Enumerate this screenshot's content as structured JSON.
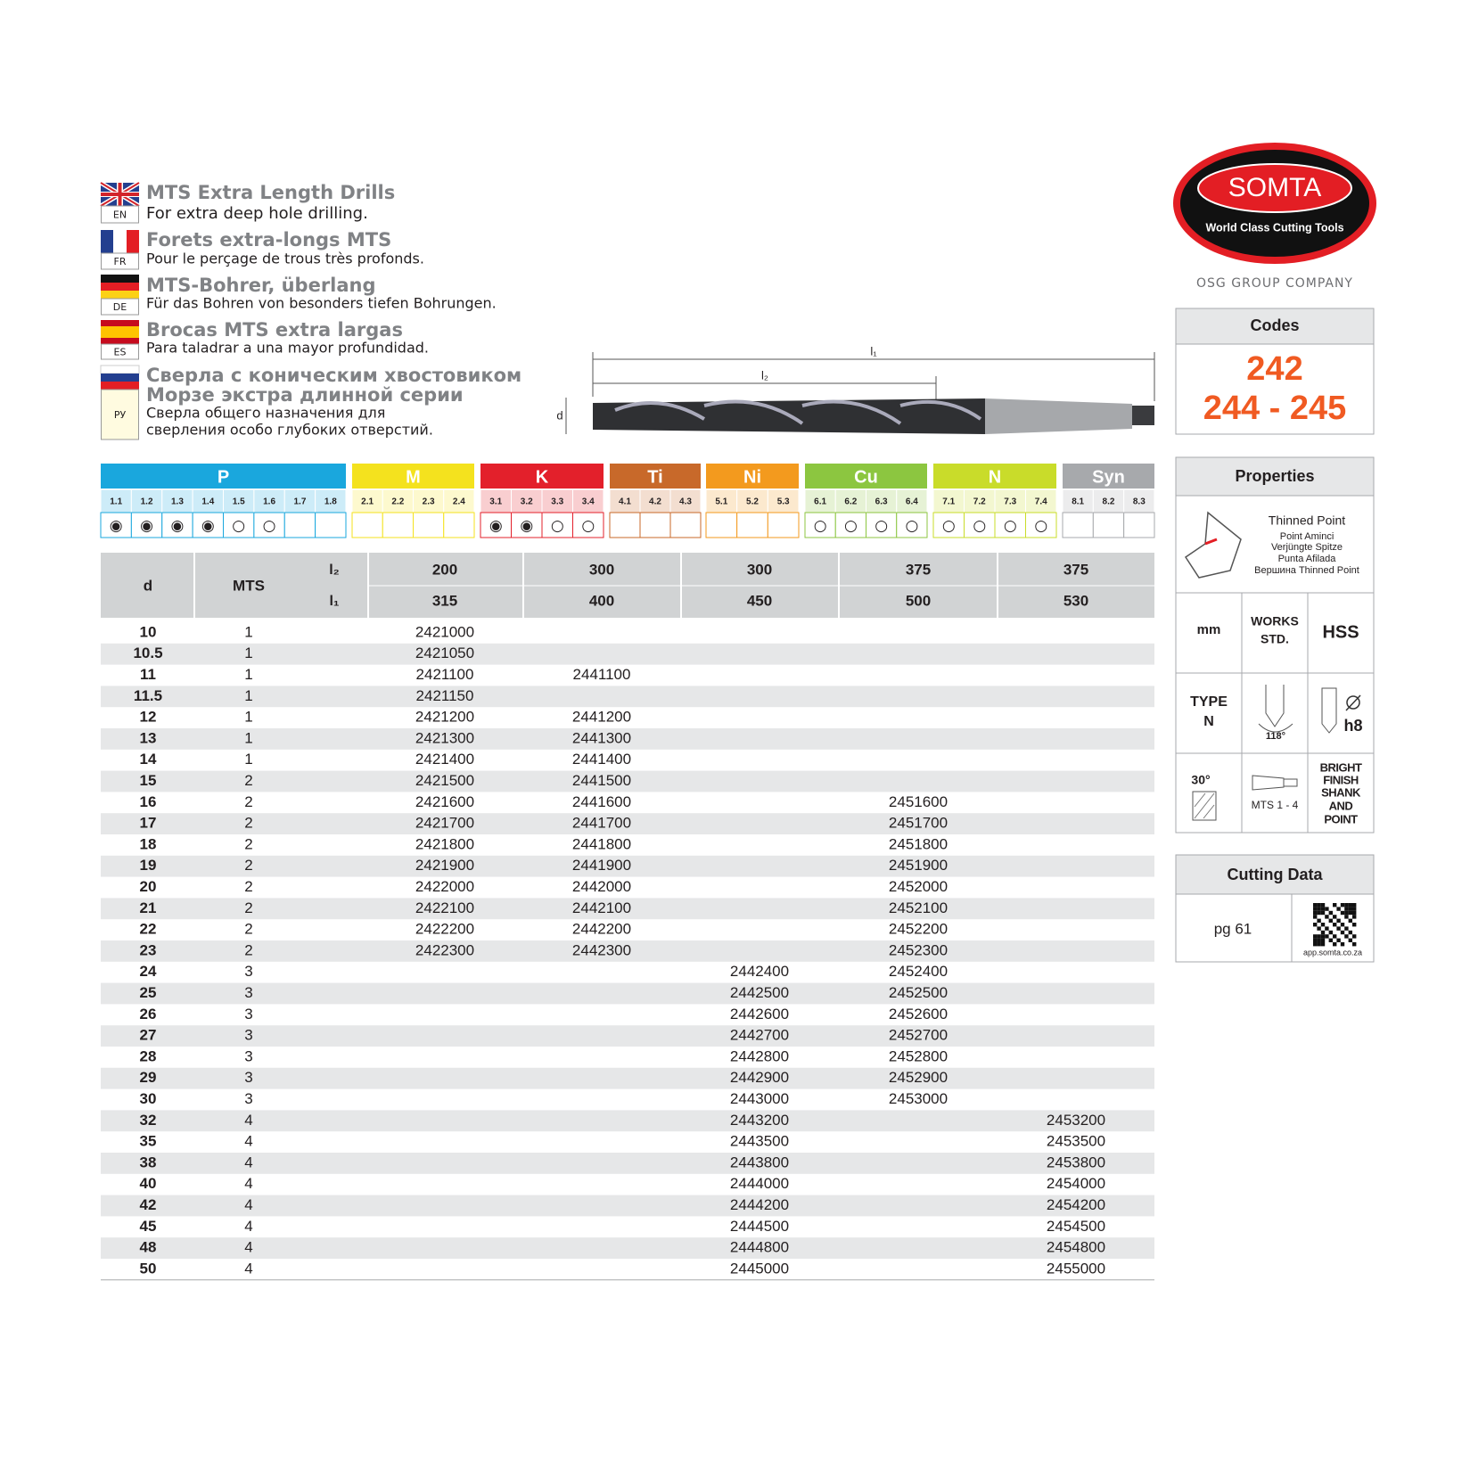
{
  "languages": [
    {
      "code": "EN",
      "title": [
        "MTS Extra Length Drills"
      ],
      "subtitle": [
        "For extra deep hole drilling."
      ]
    },
    {
      "code": "FR",
      "title": [
        "Forets extra-longs MTS"
      ],
      "subtitle": [
        "Pour le perçage de trous très profonds."
      ]
    },
    {
      "code": "DE",
      "title": [
        "MTS-Bohrer, überlang"
      ],
      "subtitle": [
        "Für das Bohren von besonders tiefen Bohrungen."
      ]
    },
    {
      "code": "ES",
      "title": [
        "Brocas MTS extra largas"
      ],
      "subtitle": [
        "Para taladrar a una mayor profundidad."
      ]
    },
    {
      "code": "РУ",
      "title": [
        "Сверла с коническим хвостовиком",
        "Морзе экстра длинной серии"
      ],
      "subtitle": [
        "Сверла общего назначения для",
        "сверления особо глубоких отверстий."
      ]
    }
  ],
  "drawing": {
    "l1": "l₁",
    "l2": "l₂",
    "d": "d"
  },
  "materials": [
    {
      "name": "P",
      "color": "#1aa7dd",
      "subs": [
        "1.1",
        "1.2",
        "1.3",
        "1.4",
        "1.5",
        "1.6",
        "1.7",
        "1.8"
      ],
      "marks": [
        "◉",
        "◉",
        "◉",
        "◉",
        "○",
        "○",
        null,
        null
      ]
    },
    {
      "name": "M",
      "color": "#f4e21e",
      "subs": [
        "2.1",
        "2.2",
        "2.3",
        "2.4"
      ],
      "marks": [
        null,
        null,
        null,
        null
      ]
    },
    {
      "name": "K",
      "color": "#e3202b",
      "subs": [
        "3.1",
        "3.2",
        "3.3",
        "3.4"
      ],
      "marks": [
        "◉",
        "◉",
        "○",
        "○"
      ]
    },
    {
      "name": "Ti",
      "color": "#c8692a",
      "subs": [
        "4.1",
        "4.2",
        "4.3"
      ],
      "marks": [
        null,
        null,
        null
      ]
    },
    {
      "name": "Ni",
      "color": "#f39a1e",
      "subs": [
        "5.1",
        "5.2",
        "5.3"
      ],
      "marks": [
        null,
        null,
        null
      ]
    },
    {
      "name": "Cu",
      "color": "#8cc640",
      "subs": [
        "6.1",
        "6.2",
        "6.3",
        "6.4"
      ],
      "marks": [
        "○",
        "○",
        "○",
        "○"
      ]
    },
    {
      "name": "N",
      "color": "#c9dc2a",
      "subs": [
        "7.1",
        "7.2",
        "7.3",
        "7.4"
      ],
      "marks": [
        "○",
        "○",
        "○",
        "○"
      ]
    },
    {
      "name": "Syn",
      "color": "#a7a9ac",
      "subs": [
        "8.1",
        "8.2",
        "8.3"
      ],
      "marks": [
        null,
        null,
        null
      ]
    }
  ],
  "table": {
    "header": {
      "d": "d",
      "mts": "MTS",
      "l2": "l₂",
      "l1": "l₁"
    },
    "columns": [
      {
        "l2": 200,
        "l1": 315
      },
      {
        "l2": 300,
        "l1": 400
      },
      {
        "l2": 300,
        "l1": 450
      },
      {
        "l2": 375,
        "l1": 500
      },
      {
        "l2": 375,
        "l1": 530
      }
    ],
    "rows": [
      [
        10,
        1,
        2421000,
        null,
        null,
        null,
        null
      ],
      [
        10.5,
        1,
        2421050,
        null,
        null,
        null,
        null
      ],
      [
        11,
        1,
        2421100,
        2441100,
        null,
        null,
        null
      ],
      [
        11.5,
        1,
        2421150,
        null,
        null,
        null,
        null
      ],
      [
        12,
        1,
        2421200,
        2441200,
        null,
        null,
        null
      ],
      [
        13,
        1,
        2421300,
        2441300,
        null,
        null,
        null
      ],
      [
        14,
        1,
        2421400,
        2441400,
        null,
        null,
        null
      ],
      [
        15,
        2,
        2421500,
        2441500,
        null,
        null,
        null
      ],
      [
        16,
        2,
        2421600,
        2441600,
        null,
        2451600,
        null
      ],
      [
        17,
        2,
        2421700,
        2441700,
        null,
        2451700,
        null
      ],
      [
        18,
        2,
        2421800,
        2441800,
        null,
        2451800,
        null
      ],
      [
        19,
        2,
        2421900,
        2441900,
        null,
        2451900,
        null
      ],
      [
        20,
        2,
        2422000,
        2442000,
        null,
        2452000,
        null
      ],
      [
        21,
        2,
        2422100,
        2442100,
        null,
        2452100,
        null
      ],
      [
        22,
        2,
        2422200,
        2442200,
        null,
        2452200,
        null
      ],
      [
        23,
        2,
        2422300,
        2442300,
        null,
        2452300,
        null
      ],
      [
        24,
        3,
        null,
        null,
        2442400,
        2452400,
        null
      ],
      [
        25,
        3,
        null,
        null,
        2442500,
        2452500,
        null
      ],
      [
        26,
        3,
        null,
        null,
        2442600,
        2452600,
        null
      ],
      [
        27,
        3,
        null,
        null,
        2442700,
        2452700,
        null
      ],
      [
        28,
        3,
        null,
        null,
        2442800,
        2452800,
        null
      ],
      [
        29,
        3,
        null,
        null,
        2442900,
        2452900,
        null
      ],
      [
        30,
        3,
        null,
        null,
        2443000,
        2453000,
        null
      ],
      [
        32,
        4,
        null,
        null,
        2443200,
        null,
        2453200
      ],
      [
        35,
        4,
        null,
        null,
        2443500,
        null,
        2453500
      ],
      [
        38,
        4,
        null,
        null,
        2443800,
        null,
        2453800
      ],
      [
        40,
        4,
        null,
        null,
        2444000,
        null,
        2454000
      ],
      [
        42,
        4,
        null,
        null,
        2444200,
        null,
        2454200
      ],
      [
        45,
        4,
        null,
        null,
        2444500,
        null,
        2454500
      ],
      [
        48,
        4,
        null,
        null,
        2444800,
        null,
        2454800
      ],
      [
        50,
        4,
        null,
        null,
        2445000,
        null,
        2455000
      ]
    ]
  },
  "logo": {
    "brand": "SOMTA",
    "tagline": "World Class Cutting Tools",
    "group": "OSG GROUP COMPANY"
  },
  "codes": {
    "title": "Codes",
    "lines": [
      "242",
      "244 - 245"
    ]
  },
  "properties": {
    "title": "Properties",
    "point": [
      "Thinned Point",
      "Point Aminci",
      "Verjüngte Spitze",
      "Punta Afilada",
      "Вершина Thinned Point"
    ],
    "unit": "mm",
    "standard": [
      "WORKS",
      "STD."
    ],
    "material": "HSS",
    "type": [
      "TYPE",
      "N"
    ],
    "angle": "118°",
    "tolerance": "h8",
    "helix": "30°",
    "shank": "MTS 1 - 4",
    "finish": [
      "BRIGHT",
      "FINISH",
      "SHANK",
      "AND",
      "POINT"
    ]
  },
  "cutting_data": {
    "title": "Cutting Data",
    "page": "pg 61",
    "url": "app.somta.co.za"
  }
}
